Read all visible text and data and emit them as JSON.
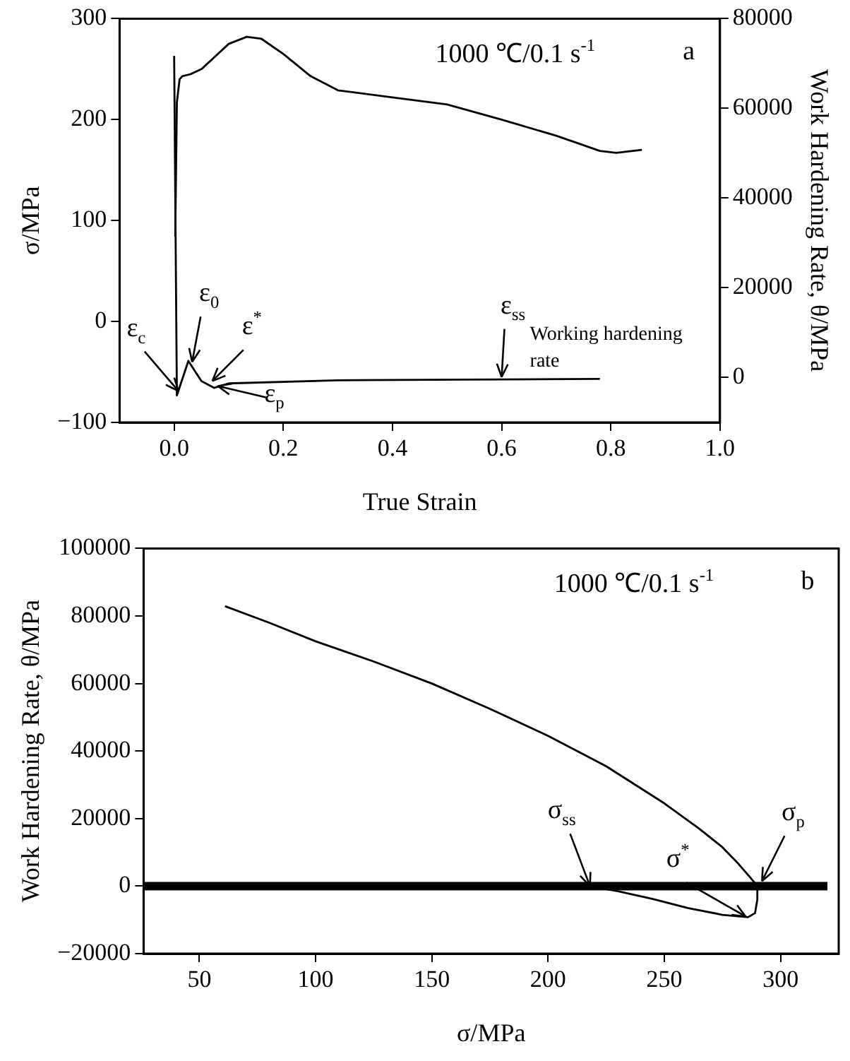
{
  "chart_data": [
    {
      "type": "line",
      "title": "1000 ℃/0.1 s$^{-1}$",
      "subtitle": "a",
      "xlabel": "True Strain",
      "ylabel": "σ/MPa",
      "y2label": "Work Hardening Rate, θ/MPa",
      "xlim": [
        -0.1,
        1.0
      ],
      "xticks": [
        {
          "value": 0,
          "label": "0.0"
        },
        {
          "value": 0.2,
          "label": "0.2"
        },
        {
          "value": 0.4,
          "label": "0.4"
        },
        {
          "value": 0.6,
          "label": "0.6"
        },
        {
          "value": 0.8,
          "label": "0.8"
        },
        {
          "value": 1.0,
          "label": "1.0"
        }
      ],
      "ylim": [
        -100,
        300
      ],
      "yticks": [
        -100,
        0,
        100,
        200,
        300
      ],
      "y2lim": [
        -10000,
        80000
      ],
      "y2ticks": [
        0,
        20000,
        40000,
        60000,
        80000
      ],
      "series": [
        {
          "color": "#000000",
          "x": [
            0.002,
            0.005,
            0.01,
            0.015,
            0.03,
            0.05,
            0.08,
            0.1,
            0.133,
            0.16,
            0.2,
            0.25,
            0.3,
            0.4,
            0.5,
            0.6,
            0.7,
            0.78,
            0.81,
            0.857
          ],
          "values": [
            84,
            217,
            240,
            243,
            245,
            250,
            265,
            275,
            282,
            280,
            265,
            243,
            229,
            222,
            215,
            200,
            184,
            169,
            167,
            170
          ]
        },
        {
          "color": "#000000",
          "axis": "y2",
          "x": [
            0.0,
            0.005,
            0.026,
            0.05,
            0.073,
            0.1,
            0.3,
            0.78
          ],
          "values": [
            71700,
            -4000,
            3700,
            -800,
            -2300,
            -1300,
            -600,
            -300
          ]
        }
      ],
      "annotations": [
        {
          "text": "ε$_{c}$",
          "x": 0.008,
          "y": -69
        },
        {
          "text": "ε$_{0}$",
          "x": 0.033,
          "y": -40
        },
        {
          "text": "ε$^{*}$",
          "x": 0.07,
          "y": -59
        },
        {
          "text": "ε$_{p}$",
          "x": 0.08,
          "y": -64
        },
        {
          "text": "ε$_{ss}$",
          "x": 0.6,
          "y": -55
        },
        {
          "text": "Working hardening rate",
          "x": 0.6,
          "y": -55
        }
      ]
    },
    {
      "type": "line",
      "title": "1000 ℃/0.1 s$^{-1}$",
      "subtitle": "b",
      "xlabel": "σ/MPa",
      "ylabel": "Work Hardening Rate, θ/MPa",
      "xlim": [
        26,
        325
      ],
      "xticks": [
        50,
        100,
        150,
        200,
        250,
        300
      ],
      "ylim": [
        -20000,
        100000
      ],
      "yticks": [
        -20000,
        0,
        20000,
        40000,
        60000,
        80000,
        100000
      ],
      "series": [
        {
          "color": "#000000",
          "x": [
            61,
            80,
            100,
            125,
            150,
            175,
            200,
            225,
            250,
            265,
            275,
            282,
            287,
            290,
            290,
            289,
            286,
            275,
            260,
            245,
            230,
            218
          ],
          "values": [
            82900,
            78000,
            72500,
            66500,
            60000,
            52500,
            44500,
            35500,
            24500,
            17000,
            11500,
            6500,
            2500,
            0,
            -4000,
            -8000,
            -9200,
            -8500,
            -6500,
            -3800,
            -1500,
            0
          ]
        }
      ],
      "ref_lines": [
        {
          "axis": "y",
          "value": 0,
          "color": "#000000"
        }
      ],
      "annotations": [
        {
          "text": "σ$_{ss}$",
          "x": 218,
          "y": 0
        },
        {
          "text": "σ$^{*}$",
          "x": 285,
          "y": -9000
        },
        {
          "text": "σ$_{p}$",
          "x": 292,
          "y": 1500
        }
      ]
    }
  ]
}
